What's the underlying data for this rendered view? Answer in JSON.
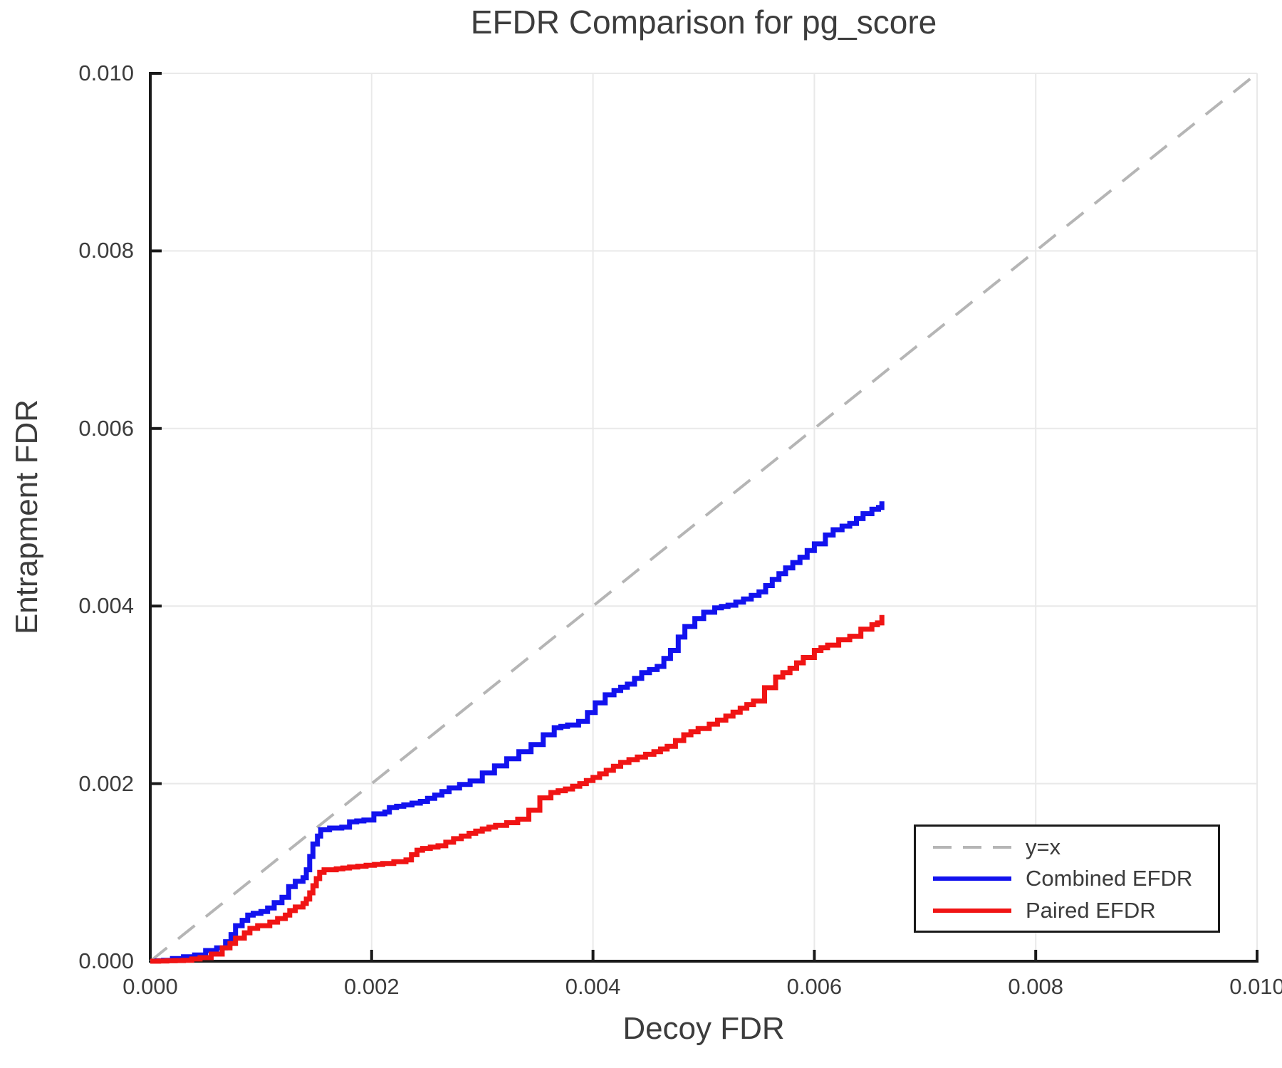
{
  "chart_data": {
    "type": "line",
    "title": "EFDR Comparison for pg_score",
    "xlabel": "Decoy FDR",
    "ylabel": "Entrapment FDR",
    "xlim": [
      0.0,
      0.01
    ],
    "ylim": [
      0.0,
      0.01
    ],
    "x_ticks": [
      0.0,
      0.002,
      0.004,
      0.006,
      0.008,
      0.01
    ],
    "y_ticks": [
      0.0,
      0.002,
      0.004,
      0.006,
      0.008,
      0.01
    ],
    "tick_decimals": 3,
    "grid": true,
    "legend_position": "lower right",
    "colors": {
      "identity": "#b5b5b5",
      "combined": "#1212ee",
      "paired": "#f01414",
      "grid": "#e9e9e9",
      "spine": "#1a1a1a",
      "text": "#3c3c3c"
    },
    "series": [
      {
        "name": "y=x",
        "style": "dashed",
        "color": "#b5b5b5",
        "points": [
          [
            0.0,
            0.0
          ],
          [
            0.01,
            0.01
          ]
        ]
      },
      {
        "name": "Combined EFDR",
        "style": "step",
        "color": "#1212ee",
        "points": [
          [
            0.0,
            0.0
          ],
          [
            0.00012,
            1e-05
          ],
          [
            0.0002,
            3e-05
          ],
          [
            0.0003,
            5e-05
          ],
          [
            0.0004,
            7e-05
          ],
          [
            0.0005,
            0.00012
          ],
          [
            0.0006,
            0.00015
          ],
          [
            0.00068,
            0.00022
          ],
          [
            0.00073,
            0.0003
          ],
          [
            0.00077,
            0.0004
          ],
          [
            0.00083,
            0.00046
          ],
          [
            0.00088,
            0.00052
          ],
          [
            0.00093,
            0.00054
          ],
          [
            0.001,
            0.00056
          ],
          [
            0.00106,
            0.0006
          ],
          [
            0.00112,
            0.00066
          ],
          [
            0.00119,
            0.00072
          ],
          [
            0.00125,
            0.00084
          ],
          [
            0.00131,
            0.0009
          ],
          [
            0.00138,
            0.00094
          ],
          [
            0.00141,
            0.00103
          ],
          [
            0.00144,
            0.00118
          ],
          [
            0.00147,
            0.00132
          ],
          [
            0.00151,
            0.00141
          ],
          [
            0.00154,
            0.00148
          ],
          [
            0.00162,
            0.0015
          ],
          [
            0.00173,
            0.00151
          ],
          [
            0.0018,
            0.00157
          ],
          [
            0.00193,
            0.00159
          ],
          [
            0.00202,
            0.00166
          ],
          [
            0.00212,
            0.00168
          ],
          [
            0.00216,
            0.00173
          ],
          [
            0.00229,
            0.00176
          ],
          [
            0.00244,
            0.0018
          ],
          [
            0.00257,
            0.00187
          ],
          [
            0.0027,
            0.00195
          ],
          [
            0.00289,
            0.00203
          ],
          [
            0.003,
            0.00212
          ],
          [
            0.00311,
            0.0022
          ],
          [
            0.00322,
            0.00228
          ],
          [
            0.00333,
            0.00236
          ],
          [
            0.00344,
            0.00244
          ],
          [
            0.00355,
            0.00255
          ],
          [
            0.00365,
            0.00263
          ],
          [
            0.00377,
            0.00266
          ],
          [
            0.00387,
            0.0027
          ],
          [
            0.00395,
            0.0028
          ],
          [
            0.00402,
            0.00291
          ],
          [
            0.00411,
            0.003
          ],
          [
            0.00419,
            0.00305
          ],
          [
            0.00431,
            0.00312
          ],
          [
            0.00444,
            0.00325
          ],
          [
            0.00458,
            0.00332
          ],
          [
            0.0047,
            0.0035
          ],
          [
            0.00477,
            0.00365
          ],
          [
            0.00483,
            0.00377
          ],
          [
            0.00492,
            0.00386
          ],
          [
            0.005,
            0.00393
          ],
          [
            0.0051,
            0.00398
          ],
          [
            0.00522,
            0.00401
          ],
          [
            0.00536,
            0.00408
          ],
          [
            0.0055,
            0.00416
          ],
          [
            0.00562,
            0.0043
          ],
          [
            0.00574,
            0.00443
          ],
          [
            0.00587,
            0.00455
          ],
          [
            0.006,
            0.0047
          ],
          [
            0.0061,
            0.0048
          ],
          [
            0.00617,
            0.00486
          ],
          [
            0.00625,
            0.0049
          ],
          [
            0.00632,
            0.00493
          ],
          [
            0.00644,
            0.00504
          ],
          [
            0.00652,
            0.00509
          ],
          [
            0.00658,
            0.00511
          ],
          [
            0.00661,
            0.00518
          ]
        ]
      },
      {
        "name": "Paired EFDR",
        "style": "step",
        "color": "#f01414",
        "points": [
          [
            0.0,
            0.0
          ],
          [
            0.0003,
            1e-05
          ],
          [
            0.00045,
            4e-05
          ],
          [
            0.00055,
            8e-05
          ],
          [
            0.00065,
            0.00015
          ],
          [
            0.00072,
            0.0002
          ],
          [
            0.00077,
            0.00026
          ],
          [
            0.00085,
            0.00032
          ],
          [
            0.0009,
            0.00037
          ],
          [
            0.00097,
            0.0004
          ],
          [
            0.00108,
            0.00044
          ],
          [
            0.00115,
            0.00048
          ],
          [
            0.00122,
            0.00052
          ],
          [
            0.00126,
            0.00057
          ],
          [
            0.00131,
            0.00061
          ],
          [
            0.00138,
            0.00065
          ],
          [
            0.00141,
            0.0007
          ],
          [
            0.00144,
            0.00077
          ],
          [
            0.00147,
            0.00085
          ],
          [
            0.0015,
            0.00093
          ],
          [
            0.00153,
            0.001
          ],
          [
            0.00157,
            0.00103
          ],
          [
            0.00168,
            0.00104
          ],
          [
            0.0018,
            0.00106
          ],
          [
            0.00195,
            0.00108
          ],
          [
            0.0021,
            0.0011
          ],
          [
            0.0022,
            0.00112
          ],
          [
            0.00231,
            0.00114
          ],
          [
            0.00236,
            0.0012
          ],
          [
            0.00241,
            0.00125
          ],
          [
            0.00246,
            0.00127
          ],
          [
            0.0026,
            0.0013
          ],
          [
            0.00274,
            0.00138
          ],
          [
            0.00288,
            0.00144
          ],
          [
            0.003,
            0.00149
          ],
          [
            0.00312,
            0.00153
          ],
          [
            0.00322,
            0.00156
          ],
          [
            0.00332,
            0.0016
          ],
          [
            0.00342,
            0.0017
          ],
          [
            0.00352,
            0.00184
          ],
          [
            0.00362,
            0.0019
          ],
          [
            0.00375,
            0.00194
          ],
          [
            0.00388,
            0.002
          ],
          [
            0.004,
            0.00207
          ],
          [
            0.00412,
            0.00215
          ],
          [
            0.00425,
            0.00224
          ],
          [
            0.0044,
            0.0023
          ],
          [
            0.00455,
            0.00236
          ],
          [
            0.00467,
            0.00242
          ],
          [
            0.00482,
            0.00255
          ],
          [
            0.00495,
            0.00262
          ],
          [
            0.00505,
            0.00267
          ],
          [
            0.0052,
            0.00276
          ],
          [
            0.00533,
            0.00285
          ],
          [
            0.00545,
            0.00293
          ],
          [
            0.00555,
            0.00308
          ],
          [
            0.00565,
            0.0032
          ],
          [
            0.00578,
            0.0033
          ],
          [
            0.0059,
            0.00342
          ],
          [
            0.006,
            0.0035
          ],
          [
            0.00612,
            0.00356
          ],
          [
            0.00622,
            0.00362
          ],
          [
            0.00632,
            0.00366
          ],
          [
            0.00642,
            0.00374
          ],
          [
            0.00652,
            0.00379
          ],
          [
            0.00657,
            0.00381
          ],
          [
            0.00661,
            0.0039
          ]
        ]
      }
    ]
  }
}
